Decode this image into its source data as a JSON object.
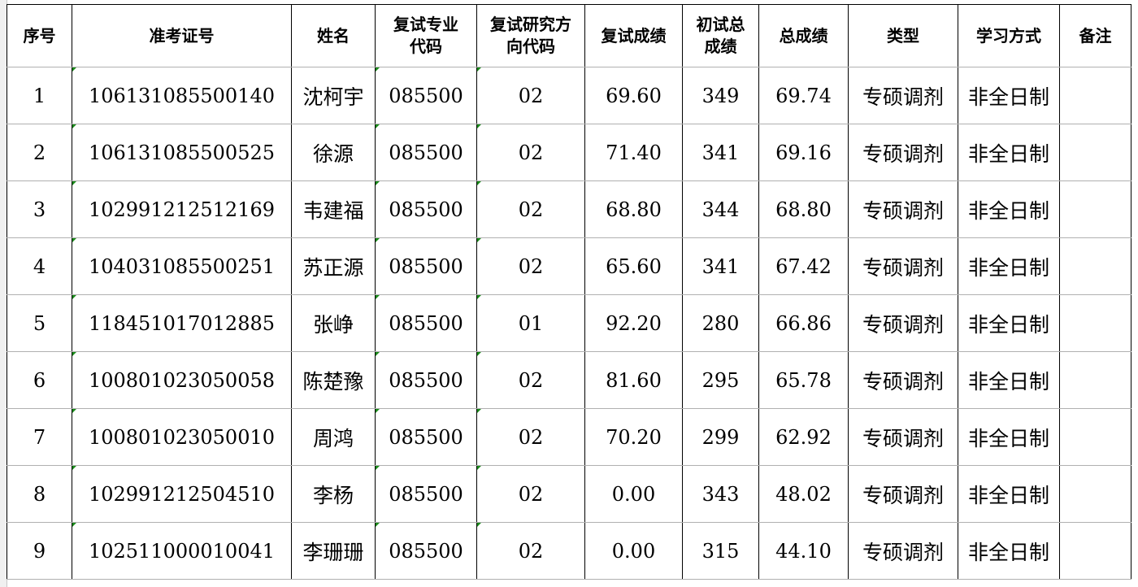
{
  "headers": [
    "序号",
    "准考证号",
    "姓名",
    "复试专业代码",
    "复试研究方向代码",
    "复试成绩",
    "初试总成绩",
    "总成绩",
    "类型",
    "学习方式",
    "备注"
  ],
  "header_lines": [
    [
      "序号"
    ],
    [
      "准考证号"
    ],
    [
      "姓名"
    ],
    [
      "复试专业",
      "代码"
    ],
    [
      "复试研究方",
      "向代码"
    ],
    [
      "复试成绩"
    ],
    [
      "初试总",
      "成绩"
    ],
    [
      "总成绩"
    ],
    [
      "类型"
    ],
    [
      "学习方式"
    ],
    [
      "备注"
    ]
  ],
  "rows": [
    [
      "1",
      "106131085500140",
      "沈柯宇",
      "085500",
      "02",
      "69.60",
      "349",
      "69.74",
      "专硕调剂",
      "非全日制",
      ""
    ],
    [
      "2",
      "106131085500525",
      "徐源",
      "085500",
      "02",
      "71.40",
      "341",
      "69.16",
      "专硕调剂",
      "非全日制",
      ""
    ],
    [
      "3",
      "102991212512169",
      "韦建福",
      "085500",
      "02",
      "68.80",
      "344",
      "68.80",
      "专硕调剂",
      "非全日制",
      ""
    ],
    [
      "4",
      "104031085500251",
      "苏正源",
      "085500",
      "02",
      "65.60",
      "341",
      "67.42",
      "专硕调剂",
      "非全日制",
      ""
    ],
    [
      "5",
      "118451017012885",
      "张峥",
      "085500",
      "01",
      "92.20",
      "280",
      "66.86",
      "专硕调剂",
      "非全日制",
      ""
    ],
    [
      "6",
      "100801023050058",
      "陈楚豫",
      "085500",
      "02",
      "81.60",
      "295",
      "65.78",
      "专硕调剂",
      "非全日制",
      ""
    ],
    [
      "7",
      "100801023050010",
      "周鸿",
      "085500",
      "02",
      "70.20",
      "299",
      "62.92",
      "专硕调剂",
      "非全日制",
      ""
    ],
    [
      "8",
      "102991212504510",
      "李杨",
      "085500",
      "02",
      "0.00",
      "343",
      "48.02",
      "专硕调剂",
      "非全日制",
      ""
    ],
    [
      "9",
      "102511000010041",
      "李珊珊",
      "085500",
      "02",
      "0.00",
      "315",
      "44.10",
      "专硕调剂",
      "非全日制",
      ""
    ]
  ]
}
